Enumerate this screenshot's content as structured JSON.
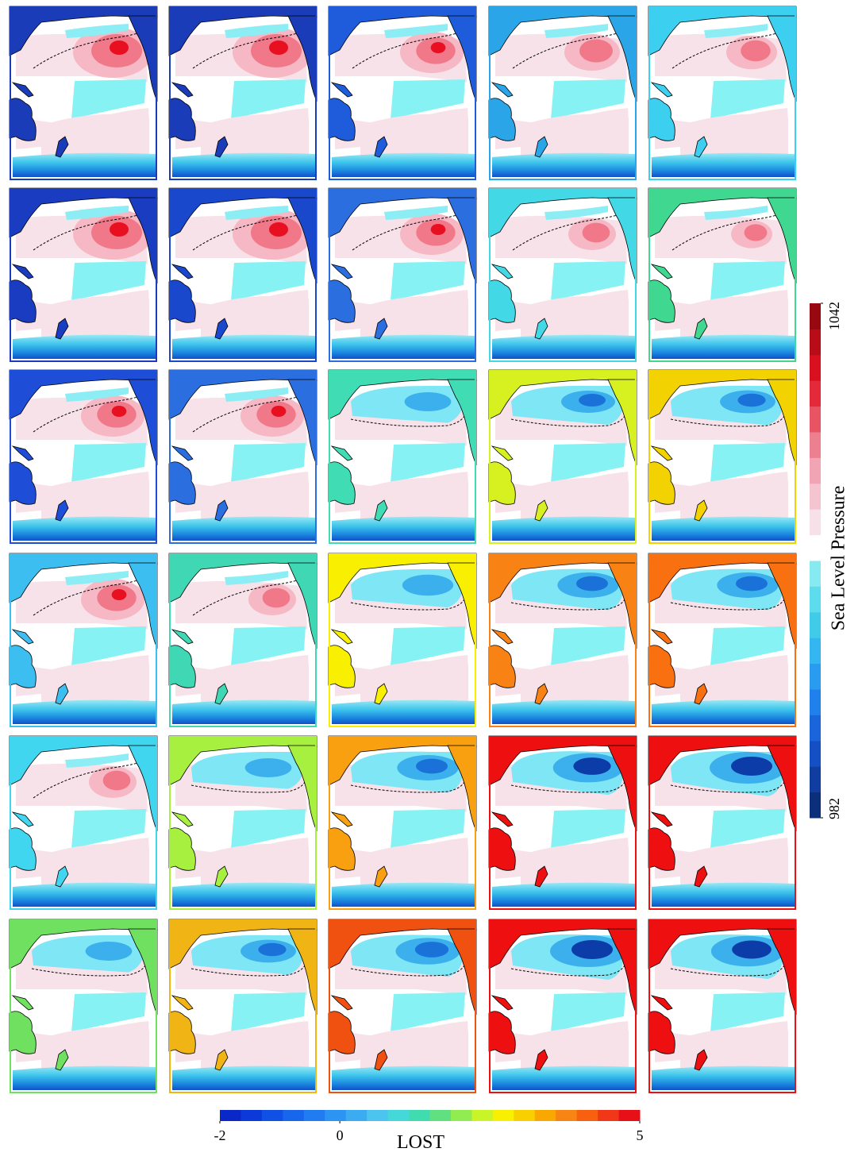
{
  "colorbars": [
    {
      "label": "Sea Level Pressure",
      "lim": [
        982,
        1042
      ],
      "ticks": [
        982,
        1042
      ]
    },
    {
      "label": "LOST",
      "lim": [
        -2,
        5
      ],
      "ticks": [
        -2,
        0,
        5
      ]
    }
  ]
}
